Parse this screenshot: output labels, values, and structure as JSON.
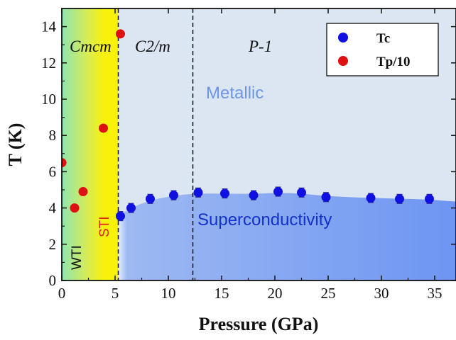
{
  "chart_data": {
    "type": "scatter",
    "xlabel": "Pressure (GPa)",
    "ylabel": "T (K)",
    "xlim": [
      0,
      37
    ],
    "ylim": [
      0,
      15
    ],
    "xticks": [
      "0",
      "5",
      "10",
      "15",
      "20",
      "25",
      "30",
      "35"
    ],
    "yticks": [
      "0",
      "2",
      "4",
      "6",
      "8",
      "10",
      "12",
      "14"
    ],
    "phase_labels": [
      "Cmcm",
      "C2/m",
      "P-1"
    ],
    "phase_boundaries": [
      5.3,
      12.3
    ],
    "region_labels": {
      "metallic": "Metallic",
      "superconductivity": "Superconductivity",
      "sti": "STI",
      "wti": "WTI"
    },
    "series": [
      {
        "name": "Tc",
        "color": "#1010e0",
        "x": [
          5.5,
          6.5,
          8.3,
          10.5,
          12.8,
          15.3,
          18.0,
          20.3,
          22.5,
          24.8,
          29.0,
          31.7,
          34.5
        ],
        "y": [
          3.55,
          4.0,
          4.5,
          4.7,
          4.85,
          4.8,
          4.7,
          4.9,
          4.85,
          4.6,
          4.55,
          4.5,
          4.5
        ],
        "yerr": 0.25
      },
      {
        "name": "Tp/10",
        "color": "#dd1111",
        "x": [
          0,
          1.2,
          2.0,
          3.9,
          5.5
        ],
        "y": [
          6.5,
          4.0,
          4.9,
          8.4,
          13.6
        ]
      }
    ],
    "colors": {
      "metallic_bg": "#dce5f2",
      "sc_light": "#9fbaf2",
      "sc_dark": "#6d95f2",
      "gradient_green": "#8fe5b0",
      "gradient_yellow": "#f8f20a",
      "sti_text": "#e02020",
      "metallic_text": "#6e96e6",
      "sc_text": "#1432c8"
    },
    "legend_position": "top-right",
    "grid": false
  }
}
